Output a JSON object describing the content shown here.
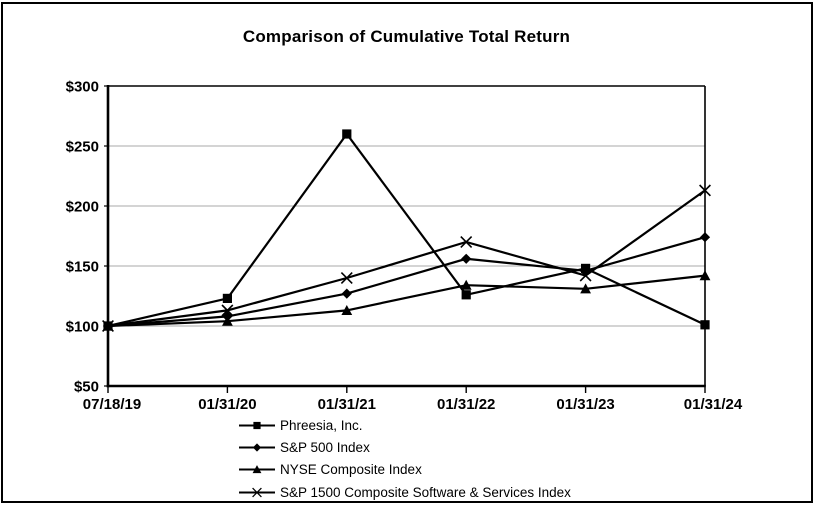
{
  "chart_data": {
    "type": "line",
    "title": "Comparison of Cumulative Total Return",
    "categories": [
      "07/18/19",
      "01/31/20",
      "01/31/21",
      "01/31/22",
      "01/31/23",
      "01/31/24"
    ],
    "series": [
      {
        "name": "Phreesia, Inc.",
        "marker": "square",
        "values": [
          100,
          123,
          260,
          126,
          148,
          101
        ]
      },
      {
        "name": "S&P 500 Index",
        "marker": "diamond",
        "values": [
          100,
          108,
          127,
          156,
          146,
          174
        ]
      },
      {
        "name": "NYSE Composite Index",
        "marker": "triangle",
        "values": [
          100,
          104,
          113,
          134,
          131,
          142
        ]
      },
      {
        "name": "S&P 1500 Composite Software & Services Index",
        "marker": "x",
        "values": [
          100,
          113,
          140,
          170,
          142,
          213
        ]
      }
    ],
    "xlabel": "",
    "ylabel": "",
    "ylim": [
      50,
      300
    ],
    "ytick_step": 50,
    "ytick_labels": [
      "$50",
      "$100",
      "$150",
      "$200",
      "$250",
      "$300"
    ],
    "grid": true,
    "legend_position": "bottom-left",
    "colors": {
      "series": "#000000",
      "gridline": "#a8a8a8",
      "axis": "#000000",
      "plot_border": "#000000",
      "background": "#ffffff",
      "frame_border": "#000000"
    }
  }
}
